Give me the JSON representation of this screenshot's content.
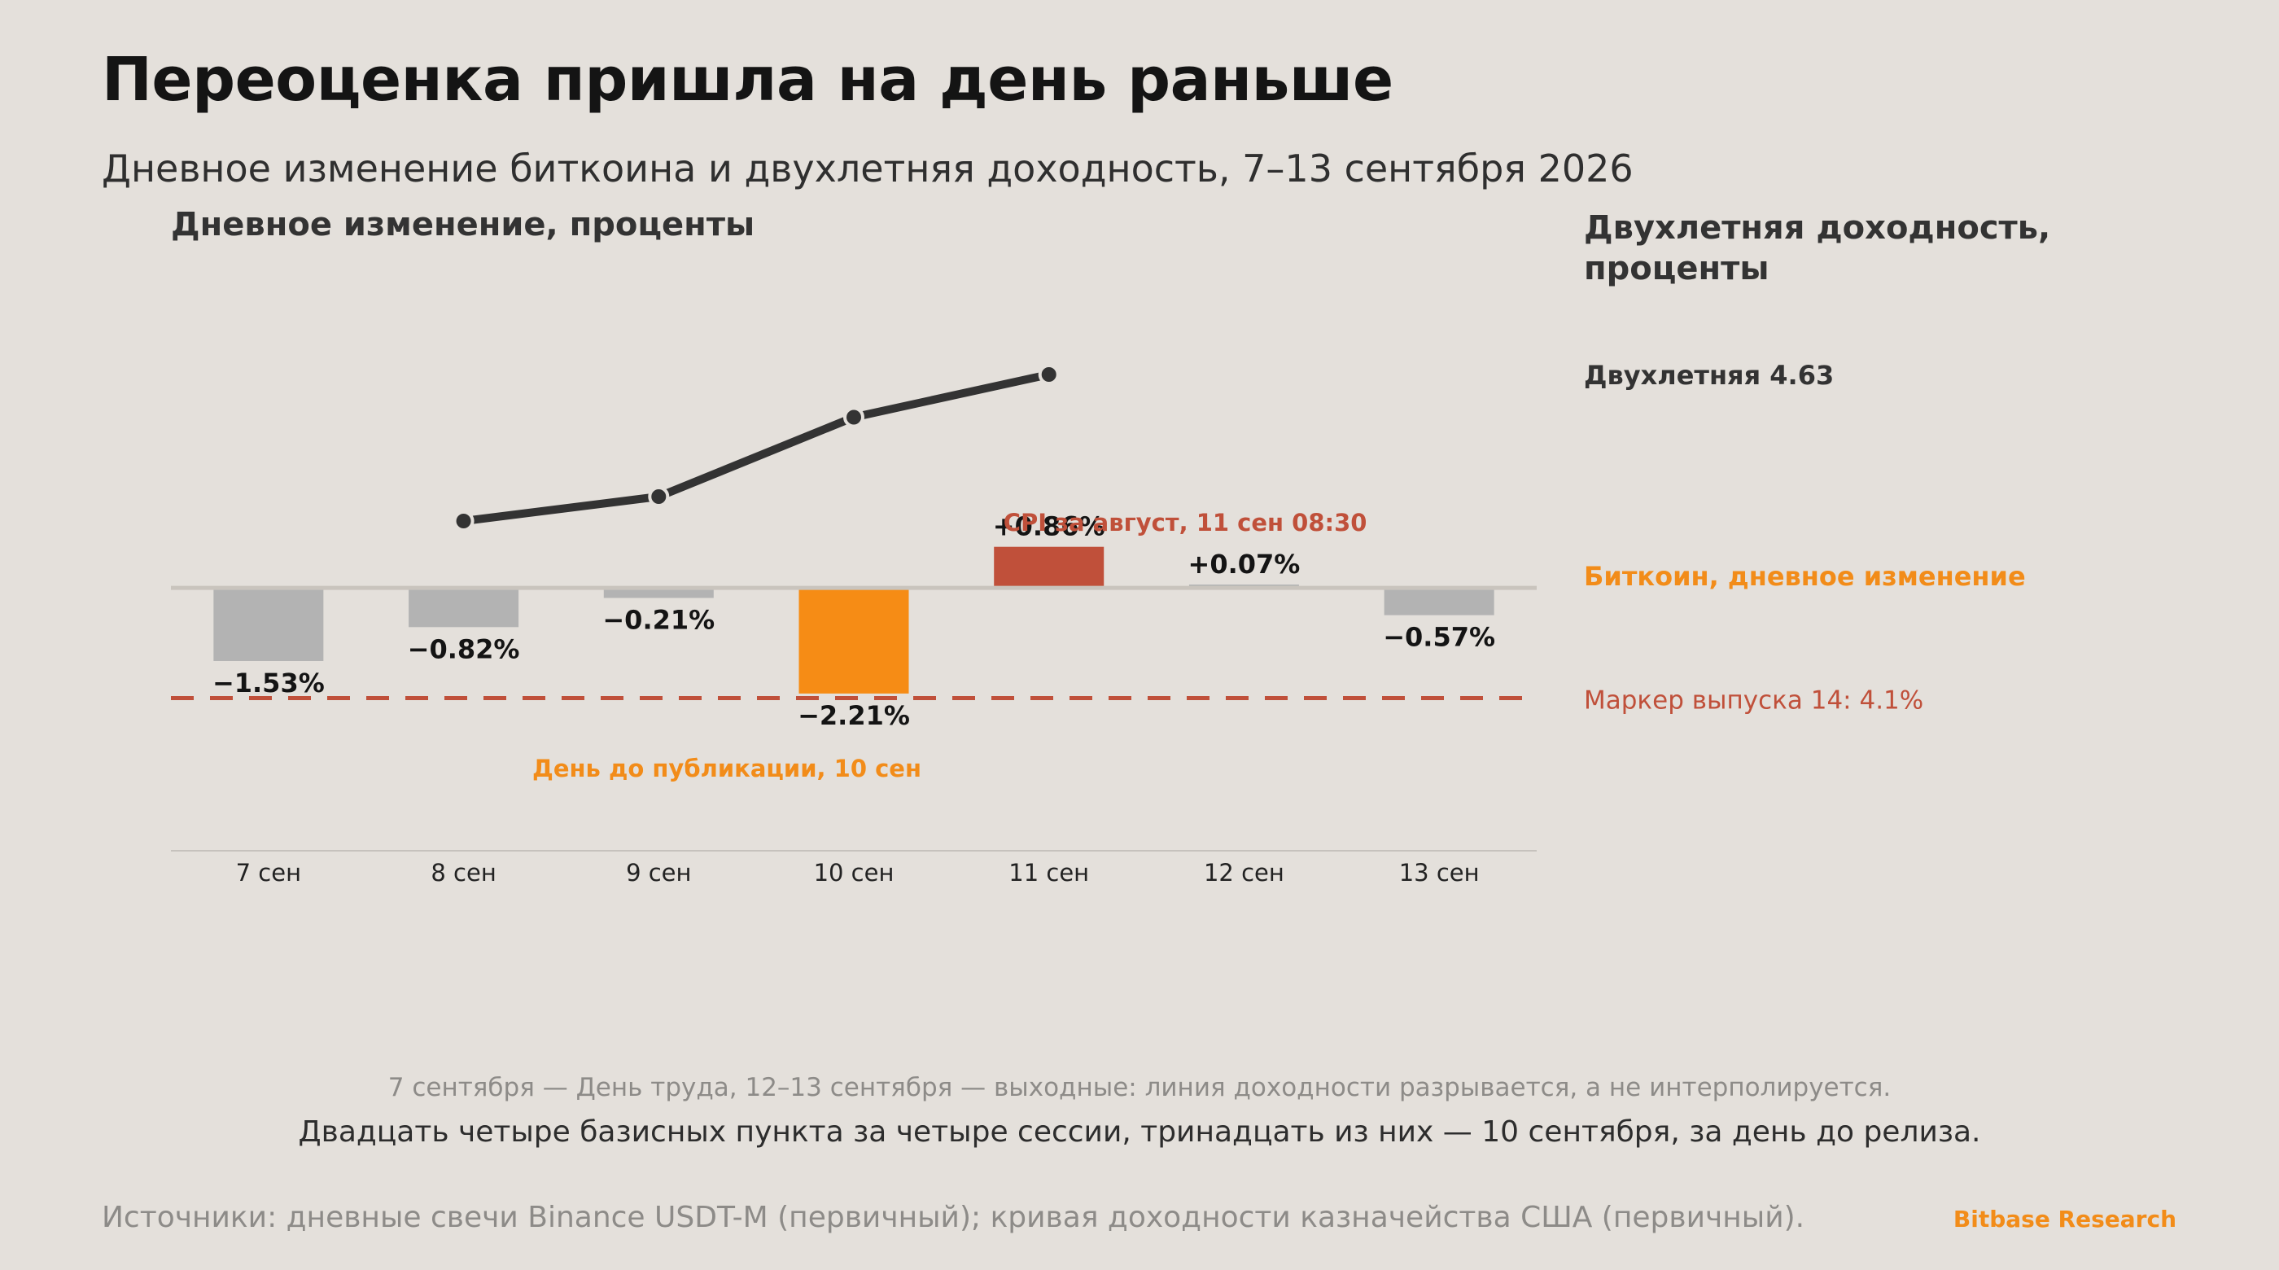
{
  "header": {
    "title": "Переоценка пришла на день раньше",
    "subtitle": "Дневное изменение биткоина и двухлетняя доходность, 7–13 сентября 2026"
  },
  "chart_data": {
    "type": "bar",
    "left_axis_title": "Дневное изменение, проценты",
    "right_axis_title": "Двухлетняя доходность, проценты",
    "categories": [
      "7 сен",
      "8 сен",
      "9 сен",
      "10 сен",
      "11 сен",
      "12 сен",
      "13 сен"
    ],
    "series": [
      {
        "name": "Биткоин, дневное изменение",
        "kind": "bar",
        "values": [
          -1.53,
          -0.82,
          -0.21,
          -2.21,
          0.86,
          0.07,
          -0.57
        ],
        "labels": [
          "−1.53%",
          "−0.82%",
          "−0.21%",
          "−2.21%",
          "+0.86%",
          "+0.07%",
          "−0.57%"
        ],
        "colors": [
          "#b3b3b3",
          "#b3b3b3",
          "#b3b3b3",
          "#f68c15",
          "#c0503a",
          "#b3b3b3",
          "#b3b3b3"
        ]
      },
      {
        "name": "Двухлетняя",
        "kind": "line",
        "values": [
          null,
          4.39,
          4.43,
          4.56,
          4.63,
          null,
          null
        ],
        "end_label": "Двухлетняя 4.63",
        "color": "#333333"
      }
    ],
    "legend": {
      "bitcoin_label": "Биткоин, дневное изменение",
      "bitcoin_color": "#f28c19"
    },
    "reference_line": {
      "value": 4.1,
      "label": "Маркер выпуска 14: 4.1%",
      "color": "#c0503a",
      "style": "dashed"
    },
    "annotations": [
      {
        "text": "CPI за август, 11 сен 08:30",
        "category": "11 сен",
        "color": "#c0503a"
      },
      {
        "text": "День до публикации, 10 сен",
        "category": "10 сен",
        "color": "#f28c19"
      }
    ],
    "left_scale": [
      -5.5,
      6.0
    ],
    "right_scale": [
      3.85,
      4.75
    ],
    "grid": false
  },
  "notes": {
    "line1": "7 сентября — День труда, 12–13 сентября — выходные: линия доходности разрывается, а не интерполируется.",
    "line2": "Двадцать четыре базисных пункта за четыре сессии, тринадцать из них — 10 сентября, за день до релиза."
  },
  "footer": {
    "sources": "Источники: дневные свечи Binance USDT-M (первичный); кривая доходности казначейства США (первичный).",
    "brand": "Bitbase Research"
  }
}
